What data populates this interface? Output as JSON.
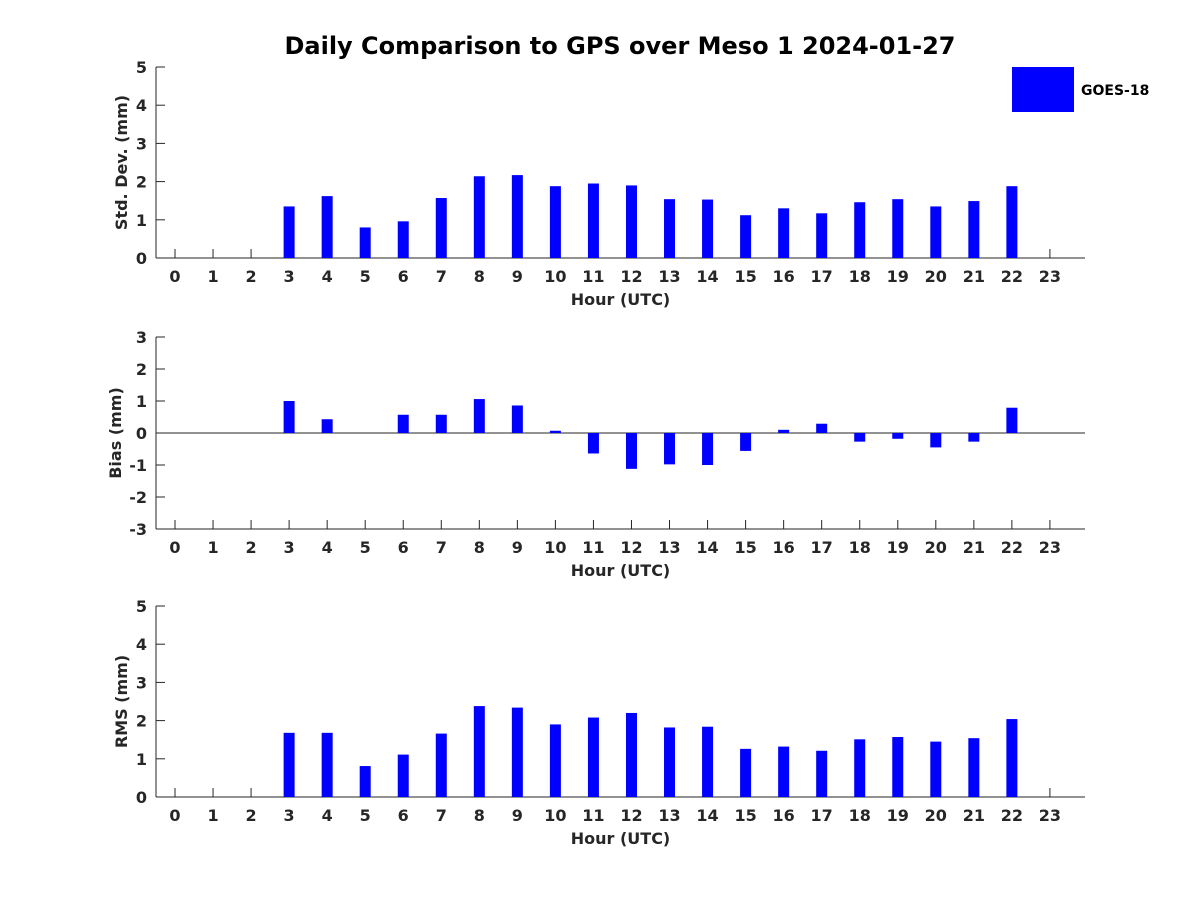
{
  "title": "Daily Comparison to GPS over Meso 1 2024-01-27",
  "legend": {
    "label": "GOES-18",
    "color": "#0000ff",
    "placement": "top-right"
  },
  "chart_data": [
    {
      "type": "bar",
      "xlabel": "Hour (UTC)",
      "ylabel": "Std. Dev. (mm)",
      "ylim": [
        0,
        5
      ],
      "yticks": [
        "0",
        "1",
        "2",
        "3",
        "4",
        "5"
      ],
      "categories": [
        "0",
        "1",
        "2",
        "3",
        "4",
        "5",
        "6",
        "7",
        "8",
        "9",
        "10",
        "11",
        "12",
        "13",
        "14",
        "15",
        "16",
        "17",
        "18",
        "19",
        "20",
        "21",
        "22",
        "23"
      ],
      "series": [
        {
          "name": "GOES-18",
          "values": [
            null,
            null,
            null,
            1.35,
            1.62,
            0.8,
            0.96,
            1.57,
            2.14,
            2.17,
            1.88,
            1.95,
            1.9,
            1.54,
            1.53,
            1.12,
            1.3,
            1.17,
            1.46,
            1.54,
            1.35,
            1.49,
            1.88,
            null
          ]
        }
      ]
    },
    {
      "type": "bar",
      "xlabel": "Hour (UTC)",
      "ylabel": "Bias (mm)",
      "ylim": [
        -3,
        3
      ],
      "yticks": [
        "-3",
        "-2",
        "-1",
        "0",
        "1",
        "2",
        "3"
      ],
      "categories": [
        "0",
        "1",
        "2",
        "3",
        "4",
        "5",
        "6",
        "7",
        "8",
        "9",
        "10",
        "11",
        "12",
        "13",
        "14",
        "15",
        "16",
        "17",
        "18",
        "19",
        "20",
        "21",
        "22",
        "23"
      ],
      "series": [
        {
          "name": "GOES-18",
          "values": [
            null,
            null,
            null,
            1.0,
            0.43,
            0.0,
            0.57,
            0.57,
            1.06,
            0.86,
            0.07,
            -0.64,
            -1.12,
            -0.98,
            -1.0,
            -0.56,
            0.1,
            0.29,
            -0.27,
            -0.18,
            -0.45,
            -0.27,
            0.79,
            null
          ]
        }
      ]
    },
    {
      "type": "bar",
      "xlabel": "Hour (UTC)",
      "ylabel": "RMS (mm)",
      "ylim": [
        0,
        5
      ],
      "yticks": [
        "0",
        "1",
        "2",
        "3",
        "4",
        "5"
      ],
      "categories": [
        "0",
        "1",
        "2",
        "3",
        "4",
        "5",
        "6",
        "7",
        "8",
        "9",
        "10",
        "11",
        "12",
        "13",
        "14",
        "15",
        "16",
        "17",
        "18",
        "19",
        "20",
        "21",
        "22",
        "23"
      ],
      "series": [
        {
          "name": "GOES-18",
          "values": [
            null,
            null,
            null,
            1.68,
            1.68,
            0.81,
            1.11,
            1.66,
            2.38,
            2.34,
            1.9,
            2.08,
            2.2,
            1.82,
            1.84,
            1.26,
            1.32,
            1.21,
            1.51,
            1.57,
            1.45,
            1.54,
            2.04,
            null
          ]
        }
      ]
    }
  ]
}
